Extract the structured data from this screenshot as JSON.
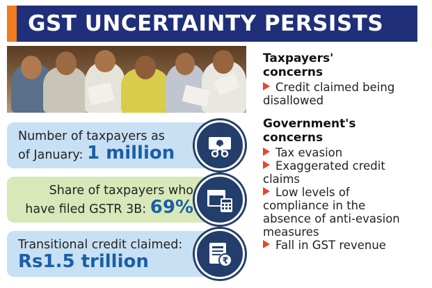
{
  "title": "GST UNCERTAINTY PERSISTS",
  "colors": {
    "title_bg": "#1f2f7a",
    "title_accent": "#f07c1e",
    "stat_box_blue": "#c7e0f3",
    "stat_box_green": "#d8e8b9",
    "value_blue": "#1a5fa6",
    "icon_circle": "#233e6a",
    "bullet": "#e8452c"
  },
  "photo": {
    "icon": "crowd-of-taxpayers-photo"
  },
  "stats": [
    {
      "line1": "Number of taxpayers as",
      "line2_prefix": "of January: ",
      "value": "1 million",
      "icon": "money-scissors-icon"
    },
    {
      "line1": "Share of taxpayers who",
      "line2_prefix": "have filed GSTR 3B: ",
      "value": "69%",
      "icon": "files-calculator-icon"
    },
    {
      "line1": "Transitional credit claimed:",
      "value": "Rs1.5 trillion",
      "icon": "rupee-document-icon"
    }
  ],
  "taxpayers": {
    "heading_line1": "Taxpayers'",
    "heading_line2": "concerns",
    "items": [
      {
        "line1": "Credit claimed being",
        "line2": "disallowed"
      }
    ]
  },
  "government": {
    "heading_line1": "Government's",
    "heading_line2": "concerns",
    "items": [
      {
        "lines": [
          "Tax evasion"
        ]
      },
      {
        "lines": [
          "Exaggerated credit",
          "claims"
        ]
      },
      {
        "lines": [
          "Low levels of",
          "compliance in the",
          "absence of anti-evasion",
          "measures"
        ]
      },
      {
        "lines": [
          "Fall in GST revenue"
        ]
      }
    ]
  }
}
